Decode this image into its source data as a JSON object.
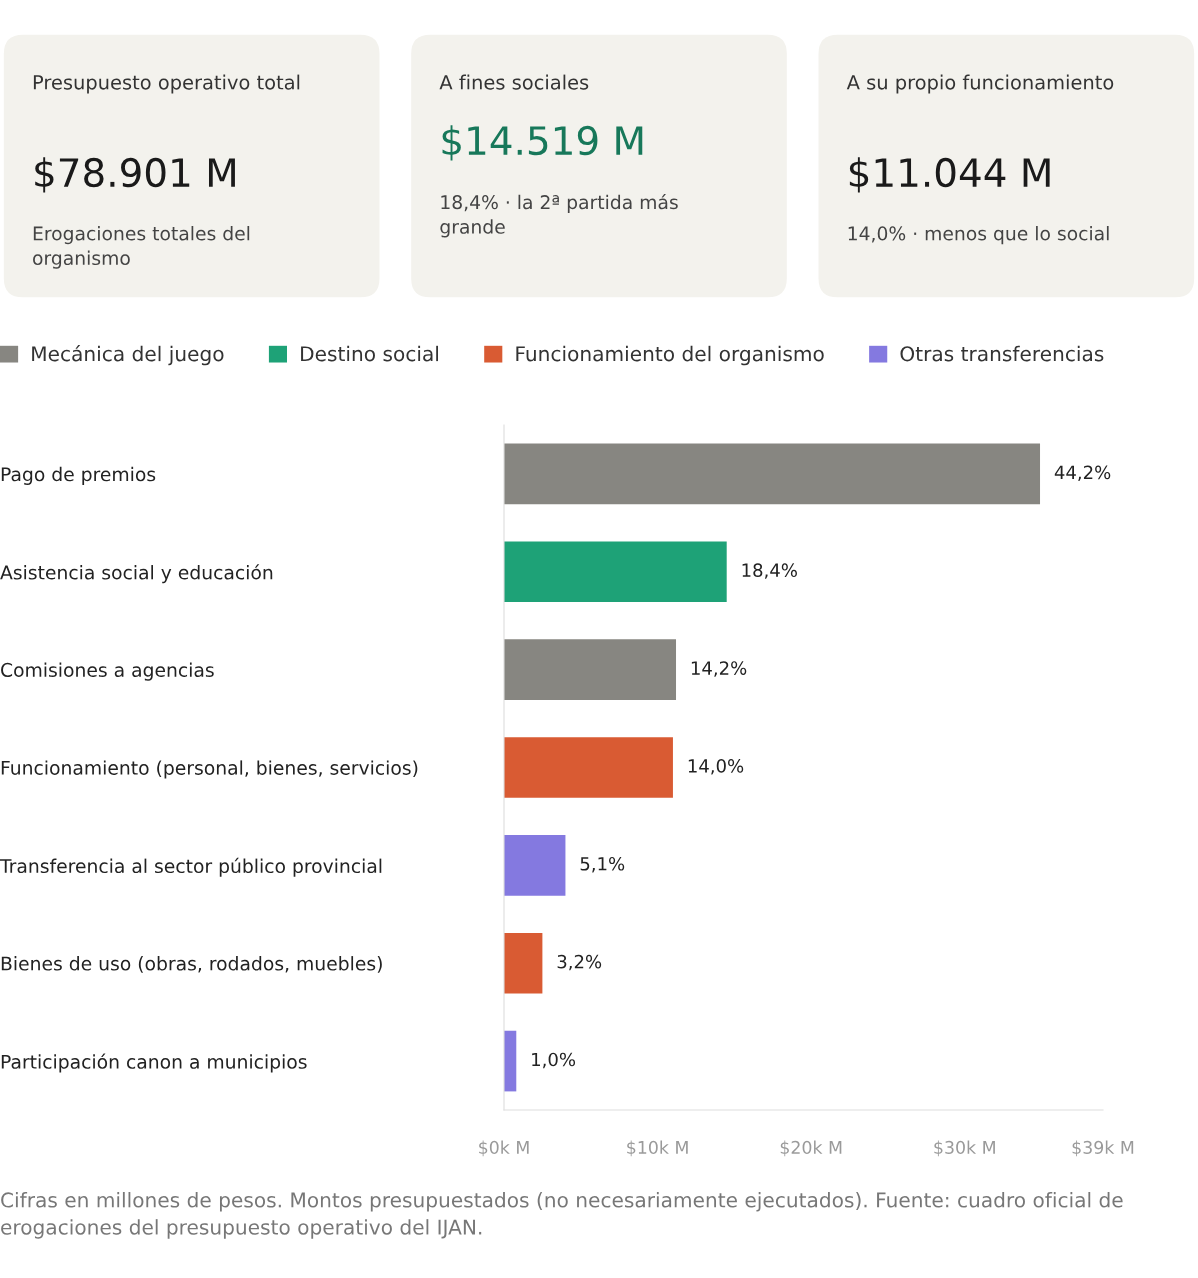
{
  "chart_data": [
    {
      "type": "other",
      "title": "Presupuesto operativo total",
      "annotations": [
        "$78.901 M",
        "Erogaciones totales del\norganismo"
      ],
      "color": "#1a1a1a"
    },
    {
      "type": "other",
      "title": "A fines sociales",
      "annotations": [
        "$14.519 M",
        "18,4% · la 2ª partida más\ngrande"
      ],
      "color": "#17785a"
    },
    {
      "type": "other",
      "title": "A su propio funcionamiento",
      "annotations": [
        "$11.044 M",
        "14,0% · menos que lo social"
      ],
      "color": "#1a1a1a"
    },
    {
      "type": "bar",
      "orientation": "horizontal",
      "categories": [
        "Pago de premios",
        "Asistencia social y educación",
        "Comisiones a agencias",
        "Funcionamiento (personal, bienes, servicios)",
        "Transferencia al sector público provincial",
        "Bienes de uso (obras, rodados, muebles)",
        "Participación canon a municipios"
      ],
      "series": [
        {
          "name": "Mecánica del juego",
          "color": "#878681",
          "values": [
            34900,
            null,
            11200,
            null,
            null,
            null,
            null
          ]
        },
        {
          "name": "Destino social",
          "color": "#1ea277",
          "values": [
            null,
            14500,
            null,
            null,
            null,
            null,
            null
          ]
        },
        {
          "name": "Funcionamiento del organismo",
          "color": "#d95b33",
          "values": [
            null,
            null,
            null,
            11000,
            null,
            2500,
            null
          ]
        },
        {
          "name": "Otras transferencias",
          "color": "#8479e0",
          "values": [
            null,
            null,
            null,
            null,
            4000,
            null,
            800
          ]
        }
      ],
      "xlim": [
        0,
        39000
      ],
      "xticks": [
        {
          "value": 0,
          "label": "$0k M"
        },
        {
          "value": 10000,
          "label": "$10k M"
        },
        {
          "value": 20000,
          "label": "$20k M"
        },
        {
          "value": 30000,
          "label": "$30k M"
        },
        {
          "value": 39000,
          "label": "$39k M"
        }
      ],
      "grid": false,
      "legend": "top",
      "annotations": [
        {
          "text": "44,2%",
          "x": 34900,
          "y": "Pago de premios"
        },
        {
          "text": "18,4%",
          "x": 14500,
          "y": "Asistencia social y educación"
        },
        {
          "text": "14,2%",
          "x": 11200,
          "y": "Comisiones a agencias"
        },
        {
          "text": "14,0%",
          "x": 11000,
          "y": "Funcionamiento (personal, bienes, servicios)"
        },
        {
          "text": "5,1%",
          "x": 4000,
          "y": "Transferencia al sector público provincial"
        },
        {
          "text": "3,2%",
          "x": 2500,
          "y": "Bienes de uso (obras, rodados, muebles)"
        },
        {
          "text": "1,0%",
          "x": 800,
          "y": "Participación canon a municipios"
        },
        "Cifras en millones de pesos. Montos presupuestados (no necesariamente ejecutados). Fuente: cuadro oficial de erogaciones del presupuesto operativo del IJAN."
      ]
    }
  ]
}
